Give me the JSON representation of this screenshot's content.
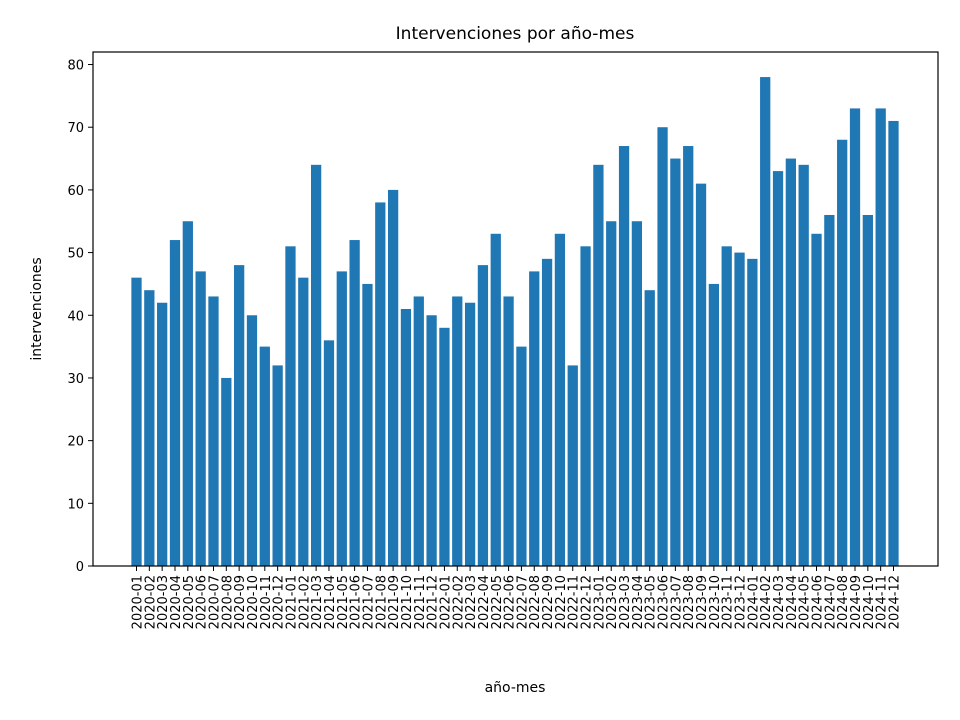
{
  "chart_data": {
    "type": "bar",
    "title": "Intervenciones por año-mes",
    "xlabel": "año-mes",
    "ylabel": "intervenciones",
    "ylim": [
      0,
      82
    ],
    "yticks": [
      0,
      10,
      20,
      30,
      40,
      50,
      60,
      70,
      80
    ],
    "grid": false,
    "bar_color": "#1f77b4",
    "categories": [
      "2020-01",
      "2020-02",
      "2020-03",
      "2020-04",
      "2020-05",
      "2020-06",
      "2020-07",
      "2020-08",
      "2020-09",
      "2020-10",
      "2020-11",
      "2020-12",
      "2021-01",
      "2021-02",
      "2021-03",
      "2021-04",
      "2021-05",
      "2021-06",
      "2021-07",
      "2021-08",
      "2021-09",
      "2021-10",
      "2021-11",
      "2021-12",
      "2022-01",
      "2022-02",
      "2022-03",
      "2022-04",
      "2022-05",
      "2022-06",
      "2022-07",
      "2022-08",
      "2022-09",
      "2022-10",
      "2022-11",
      "2022-12",
      "2023-01",
      "2023-02",
      "2023-03",
      "2023-04",
      "2023-05",
      "2023-06",
      "2023-07",
      "2023-08",
      "2023-09",
      "2023-10",
      "2023-11",
      "2023-12",
      "2024-01",
      "2024-02",
      "2024-03",
      "2024-04",
      "2024-05",
      "2024-06",
      "2024-07",
      "2024-08",
      "2024-09",
      "2024-10",
      "2024-11",
      "2024-12"
    ],
    "values": [
      46,
      44,
      42,
      52,
      55,
      47,
      43,
      30,
      48,
      40,
      35,
      32,
      51,
      46,
      64,
      36,
      47,
      52,
      45,
      58,
      60,
      41,
      43,
      40,
      38,
      43,
      42,
      48,
      53,
      43,
      35,
      47,
      49,
      53,
      32,
      51,
      64,
      55,
      67,
      55,
      44,
      70,
      65,
      67,
      61,
      45,
      51,
      50,
      49,
      78,
      63,
      65,
      64,
      53,
      56,
      68,
      73,
      56,
      73,
      71
    ]
  }
}
